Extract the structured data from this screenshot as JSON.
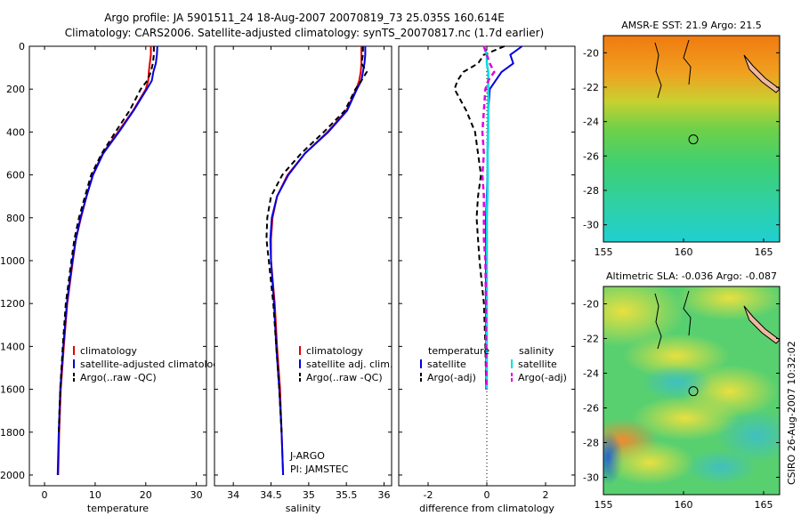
{
  "header": {
    "line1": "Argo profile: JA 5901511_24 18-Aug-2007 20070819_73 25.035S 160.614E",
    "line2": "Climatology: CARS2006. Satellite-adjusted climatology: synTS_20070817.nc (1.7d earlier)"
  },
  "side_stamp": "CSIRO 26-Aug-2007 10:32:02",
  "colors": {
    "climatology": "#e00000",
    "satellite": "#0000e0",
    "argo": "#000000",
    "salinity_satellite": "#00e0e0",
    "salinity_argo": "#e000e0",
    "land": "#f0b8a0"
  },
  "chart_data": [
    {
      "type": "line",
      "xlabel": "temperature",
      "ylabel": "",
      "xlim": [
        -3,
        32
      ],
      "ylim": [
        2050,
        0
      ],
      "y_reversed": true,
      "xticks": [
        "0",
        "10",
        "20",
        "30"
      ],
      "yticks": [
        "0",
        "200",
        "400",
        "600",
        "800",
        "1000",
        "1200",
        "1400",
        "1600",
        "1800",
        "2000"
      ],
      "depth": [
        0,
        40,
        80,
        120,
        160,
        200,
        300,
        400,
        500,
        600,
        700,
        800,
        900,
        1000,
        1200,
        1400,
        1600,
        1800,
        2000
      ],
      "series": [
        {
          "name": "climatology",
          "x": [
            21.0,
            21.0,
            20.8,
            20.6,
            20.5,
            20.0,
            17.5,
            14.5,
            11.5,
            9.5,
            8.3,
            7.2,
            6.2,
            5.6,
            4.5,
            3.8,
            3.2,
            2.9,
            2.7
          ]
        },
        {
          "name": "satellite-adjusted climatology",
          "x": [
            22.3,
            22.2,
            22.0,
            21.5,
            21.2,
            20.2,
            17.6,
            14.7,
            11.6,
            9.6,
            8.3,
            7.1,
            6.2,
            5.5,
            4.4,
            3.7,
            3.1,
            2.8,
            2.6
          ]
        },
        {
          "name": "Argo(..raw -QC)",
          "x": [
            21.6,
            21.6,
            21.4,
            21.0,
            20.3,
            19.0,
            16.8,
            14.0,
            11.3,
            9.2,
            8.0,
            6.8,
            5.9,
            5.3,
            4.2,
            3.6,
            3.1,
            2.8
          ]
        }
      ]
    },
    {
      "type": "line",
      "xlabel": "salinity",
      "ylabel": "",
      "xlim": [
        33.75,
        36.1
      ],
      "ylim": [
        2050,
        0
      ],
      "y_reversed": true,
      "xticks": [
        "34",
        "34.5",
        "35",
        "35.5",
        "36"
      ],
      "annotation": [
        "J-ARGO",
        "PI: JAMSTEC"
      ],
      "depth": [
        0,
        40,
        80,
        120,
        160,
        200,
        300,
        400,
        500,
        600,
        700,
        800,
        900,
        1000,
        1200,
        1400,
        1600,
        1800,
        2000
      ],
      "series": [
        {
          "name": "climatology",
          "x": [
            35.7,
            35.7,
            35.7,
            35.69,
            35.67,
            35.63,
            35.5,
            35.25,
            34.95,
            34.72,
            34.58,
            34.52,
            34.5,
            34.5,
            34.55,
            34.58,
            34.62,
            34.64,
            34.66
          ]
        },
        {
          "name": "satellite adj. clim.",
          "x": [
            35.75,
            35.75,
            35.74,
            35.72,
            35.7,
            35.64,
            35.51,
            35.26,
            34.95,
            34.73,
            34.58,
            34.51,
            34.49,
            34.5,
            34.54,
            34.57,
            34.61,
            34.64,
            34.66
          ]
        },
        {
          "name": "Argo(..raw -QC)",
          "x": [
            35.72,
            35.72,
            35.7,
            35.77,
            35.7,
            35.62,
            35.48,
            35.2,
            34.9,
            34.65,
            34.5,
            34.45,
            34.44,
            34.47,
            34.53,
            34.57,
            34.61,
            34.64
          ]
        }
      ]
    },
    {
      "type": "line",
      "xlabel": "difference from climatology",
      "ylabel": "",
      "xlim": [
        -3.0,
        3.0
      ],
      "ylim": [
        2050,
        0
      ],
      "y_reversed": true,
      "xticks": [
        "-2",
        "0",
        "2"
      ],
      "legend_headers": [
        "temperature",
        "salinity"
      ],
      "depth": [
        0,
        40,
        80,
        120,
        160,
        200,
        300,
        400,
        500,
        600,
        700,
        800,
        900,
        1000,
        1200,
        1400,
        1600
      ],
      "series": [
        {
          "name": "satellite",
          "group": "temperature",
          "x": [
            1.2,
            0.8,
            0.9,
            0.5,
            0.3,
            0.1,
            0.05,
            0.05,
            0.03,
            0.02,
            0.0,
            -0.03,
            -0.03,
            -0.03,
            -0.03,
            -0.02,
            -0.02
          ]
        },
        {
          "name": "Argo(-adj)",
          "group": "temperature",
          "x": [
            0.6,
            -0.1,
            -0.3,
            -0.8,
            -1.0,
            -1.1,
            -0.7,
            -0.4,
            -0.3,
            -0.2,
            -0.3,
            -0.35,
            -0.3,
            -0.25,
            -0.1,
            -0.05,
            -0.02
          ]
        },
        {
          "name": "satellite",
          "group": "salinity",
          "x": [
            -0.1,
            0.0,
            0.0,
            0.05,
            0.05,
            0.05,
            0.05,
            0.04,
            0.02,
            0.03,
            0.02,
            0.0,
            0.0,
            0.0,
            0.0,
            0.0,
            0.0
          ]
        },
        {
          "name": "Argo(-adj)",
          "group": "salinity",
          "x": [
            -0.1,
            0.0,
            0.1,
            0.25,
            0.05,
            -0.05,
            -0.1,
            -0.15,
            -0.1,
            -0.15,
            -0.1,
            -0.1,
            -0.1,
            -0.05,
            -0.03,
            -0.02,
            -0.01
          ]
        }
      ]
    },
    {
      "type": "heatmap",
      "title": "AMSR-E SST: 21.9  Argo: 21.5",
      "xlim": [
        155,
        166
      ],
      "ylim": [
        -31,
        -19
      ],
      "xticks": [
        "155",
        "160",
        "165"
      ],
      "yticks": [
        "-20",
        "-22",
        "-24",
        "-26",
        "-28",
        "-30"
      ],
      "marker": {
        "lon": 160.614,
        "lat": -25.035
      }
    },
    {
      "type": "heatmap",
      "title": "Altimetric SLA: -0.036  Argo: -0.087",
      "xlim": [
        155,
        166
      ],
      "ylim": [
        -31,
        -19
      ],
      "xticks": [
        "155",
        "160",
        "165"
      ],
      "yticks": [
        "-20",
        "-22",
        "-24",
        "-26",
        "-28",
        "-30"
      ],
      "marker": {
        "lon": 160.614,
        "lat": -25.035
      }
    }
  ]
}
